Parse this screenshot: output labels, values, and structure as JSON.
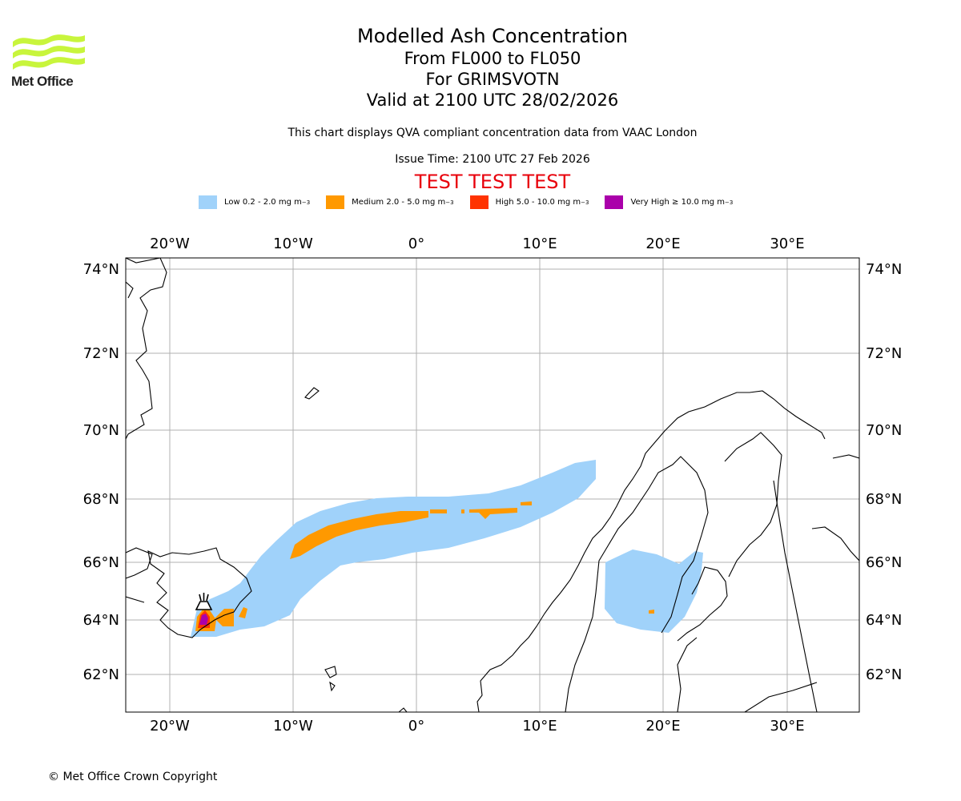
{
  "header": {
    "logo_text": "Met Office",
    "title": "Modelled Ash Concentration",
    "levels": "From FL000 to FL050",
    "volcano": "For GRIMSVOTN",
    "valid": "Valid at 2100 UTC 28/02/2026",
    "compliance": "This chart displays QVA compliant concentration data from VAAC London",
    "issue_time": "Issue Time: 2100 UTC 27 Feb 2026",
    "test_banner": "TEST TEST TEST"
  },
  "legend": [
    {
      "label": "Low 0.2 - 2.0 mg m",
      "unit_sup": "−3",
      "color": "#a0d2fa"
    },
    {
      "label": "Medium 2.0 - 5.0 mg m",
      "unit_sup": "−3",
      "color": "#ff9900"
    },
    {
      "label": "High 5.0 - 10.0 mg m",
      "unit_sup": "−3",
      "color": "#ff3300"
    },
    {
      "label": "Very High  ≥  10.0 mg m",
      "unit_sup": "−3",
      "color": "#aa00aa"
    }
  ],
  "map": {
    "lon_ticks": [
      "20°W",
      "10°W",
      "0°",
      "10°E",
      "20°E",
      "30°E"
    ],
    "lat_ticks": [
      "74°N",
      "72°N",
      "70°N",
      "68°N",
      "66°N",
      "64°N",
      "62°N"
    ],
    "volcano_symbol": "volcano-icon"
  },
  "footer": {
    "copyright": "© Met Office Crown Copyright"
  }
}
